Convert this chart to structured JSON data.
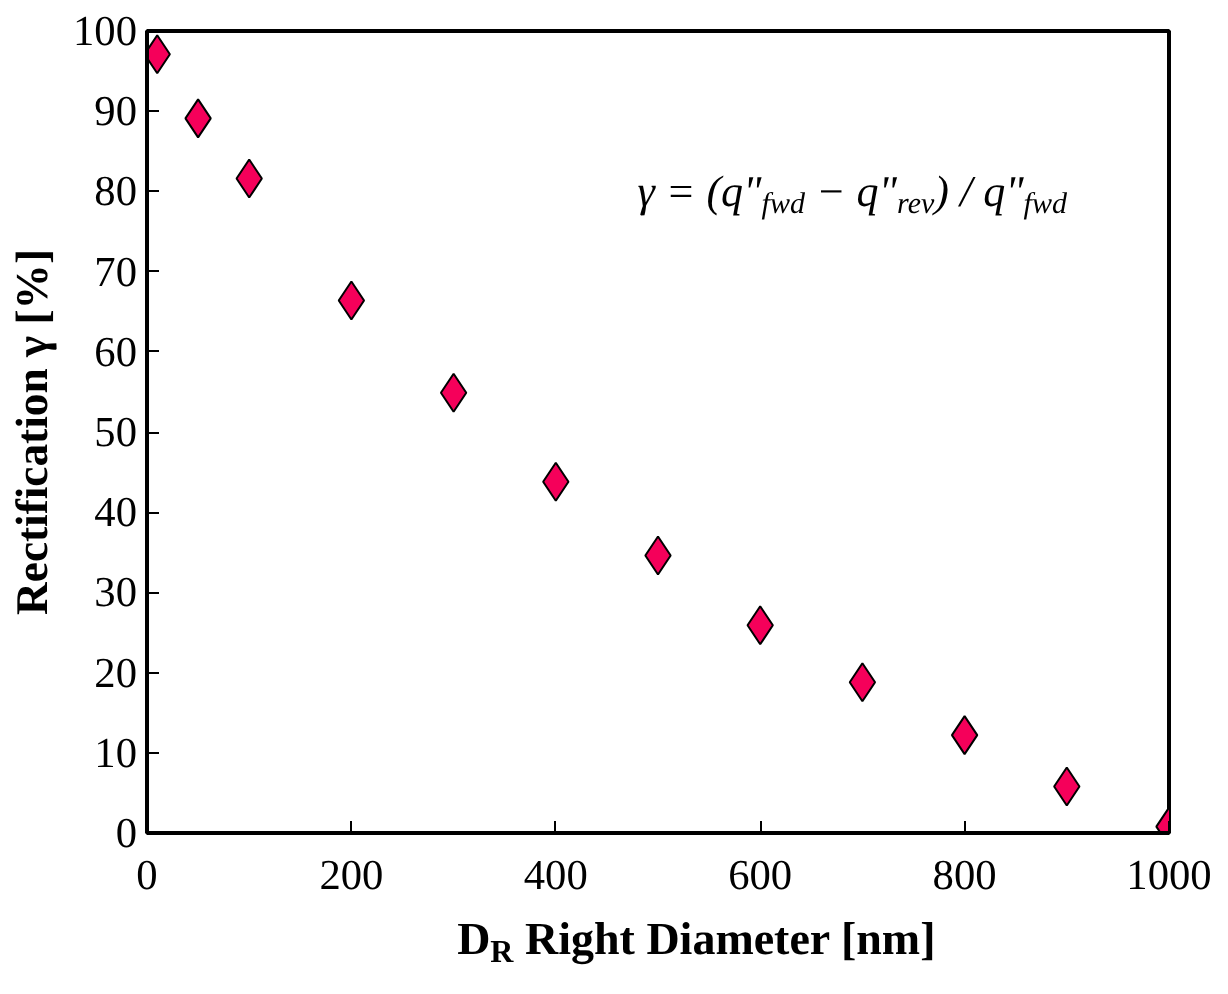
{
  "chart_data": {
    "type": "scatter",
    "xlabel": "D$_{R}$ Right Diameter [nm]",
    "ylabel": "Rectification γ [%]",
    "x": [
      10,
      50,
      100,
      200,
      300,
      400,
      500,
      600,
      700,
      800,
      900,
      1000
    ],
    "series": [
      {
        "color": "#f5005a",
        "values": [
          97.1,
          89.1,
          81.6,
          66.4,
          54.9,
          43.8,
          34.6,
          25.9,
          18.8,
          12.2,
          5.8,
          0.8
        ]
      }
    ],
    "xlim": [
      0,
      1000
    ],
    "ylim": [
      0,
      100
    ],
    "xticks": [
      0,
      200,
      400,
      600,
      800,
      1000
    ],
    "yticks": [
      0,
      10,
      20,
      30,
      40,
      50,
      60,
      70,
      80,
      90,
      100
    ],
    "marker": "diamond",
    "grid": false,
    "annotations": [
      "γ = (q\"$_{fwd}$ − q\"$_{rev}$) / q\"$_{fwd}$"
    ]
  }
}
